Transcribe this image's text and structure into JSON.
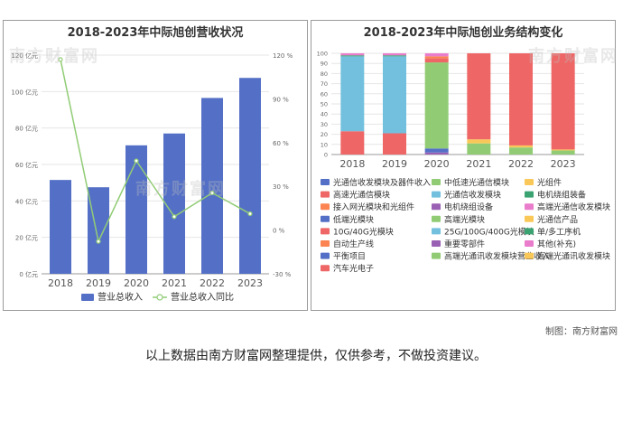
{
  "watermark": "南方财富网",
  "credit": "制图：南方财富网",
  "note": "以上数据由南方财富网整理提供，仅供参考，不做投资建议。",
  "chart_data": [
    {
      "type": "bar",
      "title": "2018-2023年中际旭创营收状况",
      "categories": [
        "2018",
        "2019",
        "2020",
        "2021",
        "2022",
        "2023"
      ],
      "series": [
        {
          "name": "营业总收入",
          "values": [
            51.5,
            47.5,
            70.5,
            77.0,
            96.5,
            107.5
          ],
          "axis": "left",
          "color": "#5470c6"
        },
        {
          "name": "营业总收入同比",
          "type": "line",
          "values": [
            117.0,
            -7.8,
            47.5,
            9.2,
            25.5,
            11.2
          ],
          "axis": "right",
          "color": "#91cc75"
        }
      ],
      "left_axis": {
        "ticks": [
          "0 亿元",
          "20 亿元",
          "40 亿元",
          "60 亿元",
          "80 亿元",
          "100 亿元",
          "120 亿元"
        ],
        "ylim": [
          0,
          120
        ]
      },
      "right_axis": {
        "ticks": [
          "-30 %",
          "0 %",
          "30 %",
          "60 %",
          "90 %",
          "120 %"
        ],
        "ylim": [
          -30,
          120
        ]
      },
      "legend_position": "bottom"
    },
    {
      "type": "bar",
      "stacked": true,
      "title": "2018-2023年中际旭创业务结构变化",
      "categories": [
        "2018",
        "2019",
        "2020",
        "2021",
        "2022",
        "2023"
      ],
      "ylim": [
        0,
        100
      ],
      "yticks": [
        "0",
        "10",
        "20",
        "30",
        "40",
        "50",
        "60",
        "70",
        "80",
        "90",
        "100"
      ],
      "legend_position": "bottom",
      "series": [
        {
          "name": "光通信收发模块及器件收入",
          "color": "#5470c6",
          "values": [
            0,
            0,
            0,
            0,
            0,
            0
          ]
        },
        {
          "name": "中低速光通信模块",
          "color": "#91cc75",
          "values": [
            0,
            0,
            0,
            0,
            0,
            0
          ]
        },
        {
          "name": "光组件",
          "color": "#fac858",
          "values": [
            0,
            0,
            0,
            0,
            0,
            0
          ]
        },
        {
          "name": "高速光通信模块",
          "color": "#ee6666",
          "values": [
            23,
            21,
            0,
            0,
            0,
            0
          ]
        },
        {
          "name": "光通信收发模块",
          "color": "#73c0de",
          "values": [
            74,
            76,
            0,
            0,
            0,
            0
          ]
        },
        {
          "name": "电机绕组装备",
          "color": "#3ba272",
          "values": [
            1,
            1,
            0,
            0,
            0,
            0
          ]
        },
        {
          "name": "接入网光模块和光组件",
          "color": "#fc8452",
          "values": [
            0,
            0,
            0,
            0,
            0,
            0
          ]
        },
        {
          "name": "电机绕组设备",
          "color": "#9a60b4",
          "values": [
            0,
            0,
            2,
            0,
            0,
            0
          ]
        },
        {
          "name": "高端光通信收发模块",
          "color": "#ea7ccc",
          "values": [
            0,
            0,
            0,
            0,
            0,
            0
          ]
        },
        {
          "name": "低端光模块",
          "color": "#5470c6",
          "values": [
            0,
            0,
            4,
            0,
            0,
            0
          ]
        },
        {
          "name": "高端光模块",
          "color": "#91cc75",
          "values": [
            0,
            0,
            85,
            0,
            0,
            0
          ]
        },
        {
          "name": "光通信产品",
          "color": "#fac858",
          "values": [
            0,
            0,
            0,
            0,
            0,
            0
          ]
        },
        {
          "name": "10G/40G光模块",
          "color": "#ee6666",
          "values": [
            0,
            0,
            4,
            0,
            0,
            0
          ]
        },
        {
          "name": "25G/100G/400G光模块",
          "color": "#73c0de",
          "values": [
            0,
            0,
            0,
            0,
            0,
            0
          ]
        },
        {
          "name": "单/多工序机",
          "color": "#3ba272",
          "values": [
            0,
            0,
            0,
            0,
            0,
            0
          ]
        },
        {
          "name": "自动生产线",
          "color": "#fc8452",
          "values": [
            0,
            0,
            2,
            0,
            0,
            0
          ]
        },
        {
          "name": "重要零部件",
          "color": "#9a60b4",
          "values": [
            0,
            0,
            0,
            0,
            0,
            0
          ]
        },
        {
          "name": "其他(补充)",
          "color": "#ea7ccc",
          "values": [
            2,
            2,
            3,
            0,
            0,
            0
          ]
        },
        {
          "name": "平衡项目",
          "color": "#5470c6",
          "values": [
            0,
            0,
            0,
            0,
            0,
            0
          ]
        },
        {
          "name": "高端光通讯收发模块营业收入",
          "color": "#91cc75",
          "values": [
            0,
            0,
            0,
            11,
            7,
            4
          ]
        },
        {
          "name": "高端光通讯收发模块",
          "color": "#fac858",
          "values": [
            0,
            0,
            0,
            4,
            2,
            1
          ]
        },
        {
          "name": "汽车光电子",
          "color": "#ee6666",
          "values": [
            0,
            0,
            0,
            85,
            91,
            95
          ]
        }
      ]
    }
  ]
}
